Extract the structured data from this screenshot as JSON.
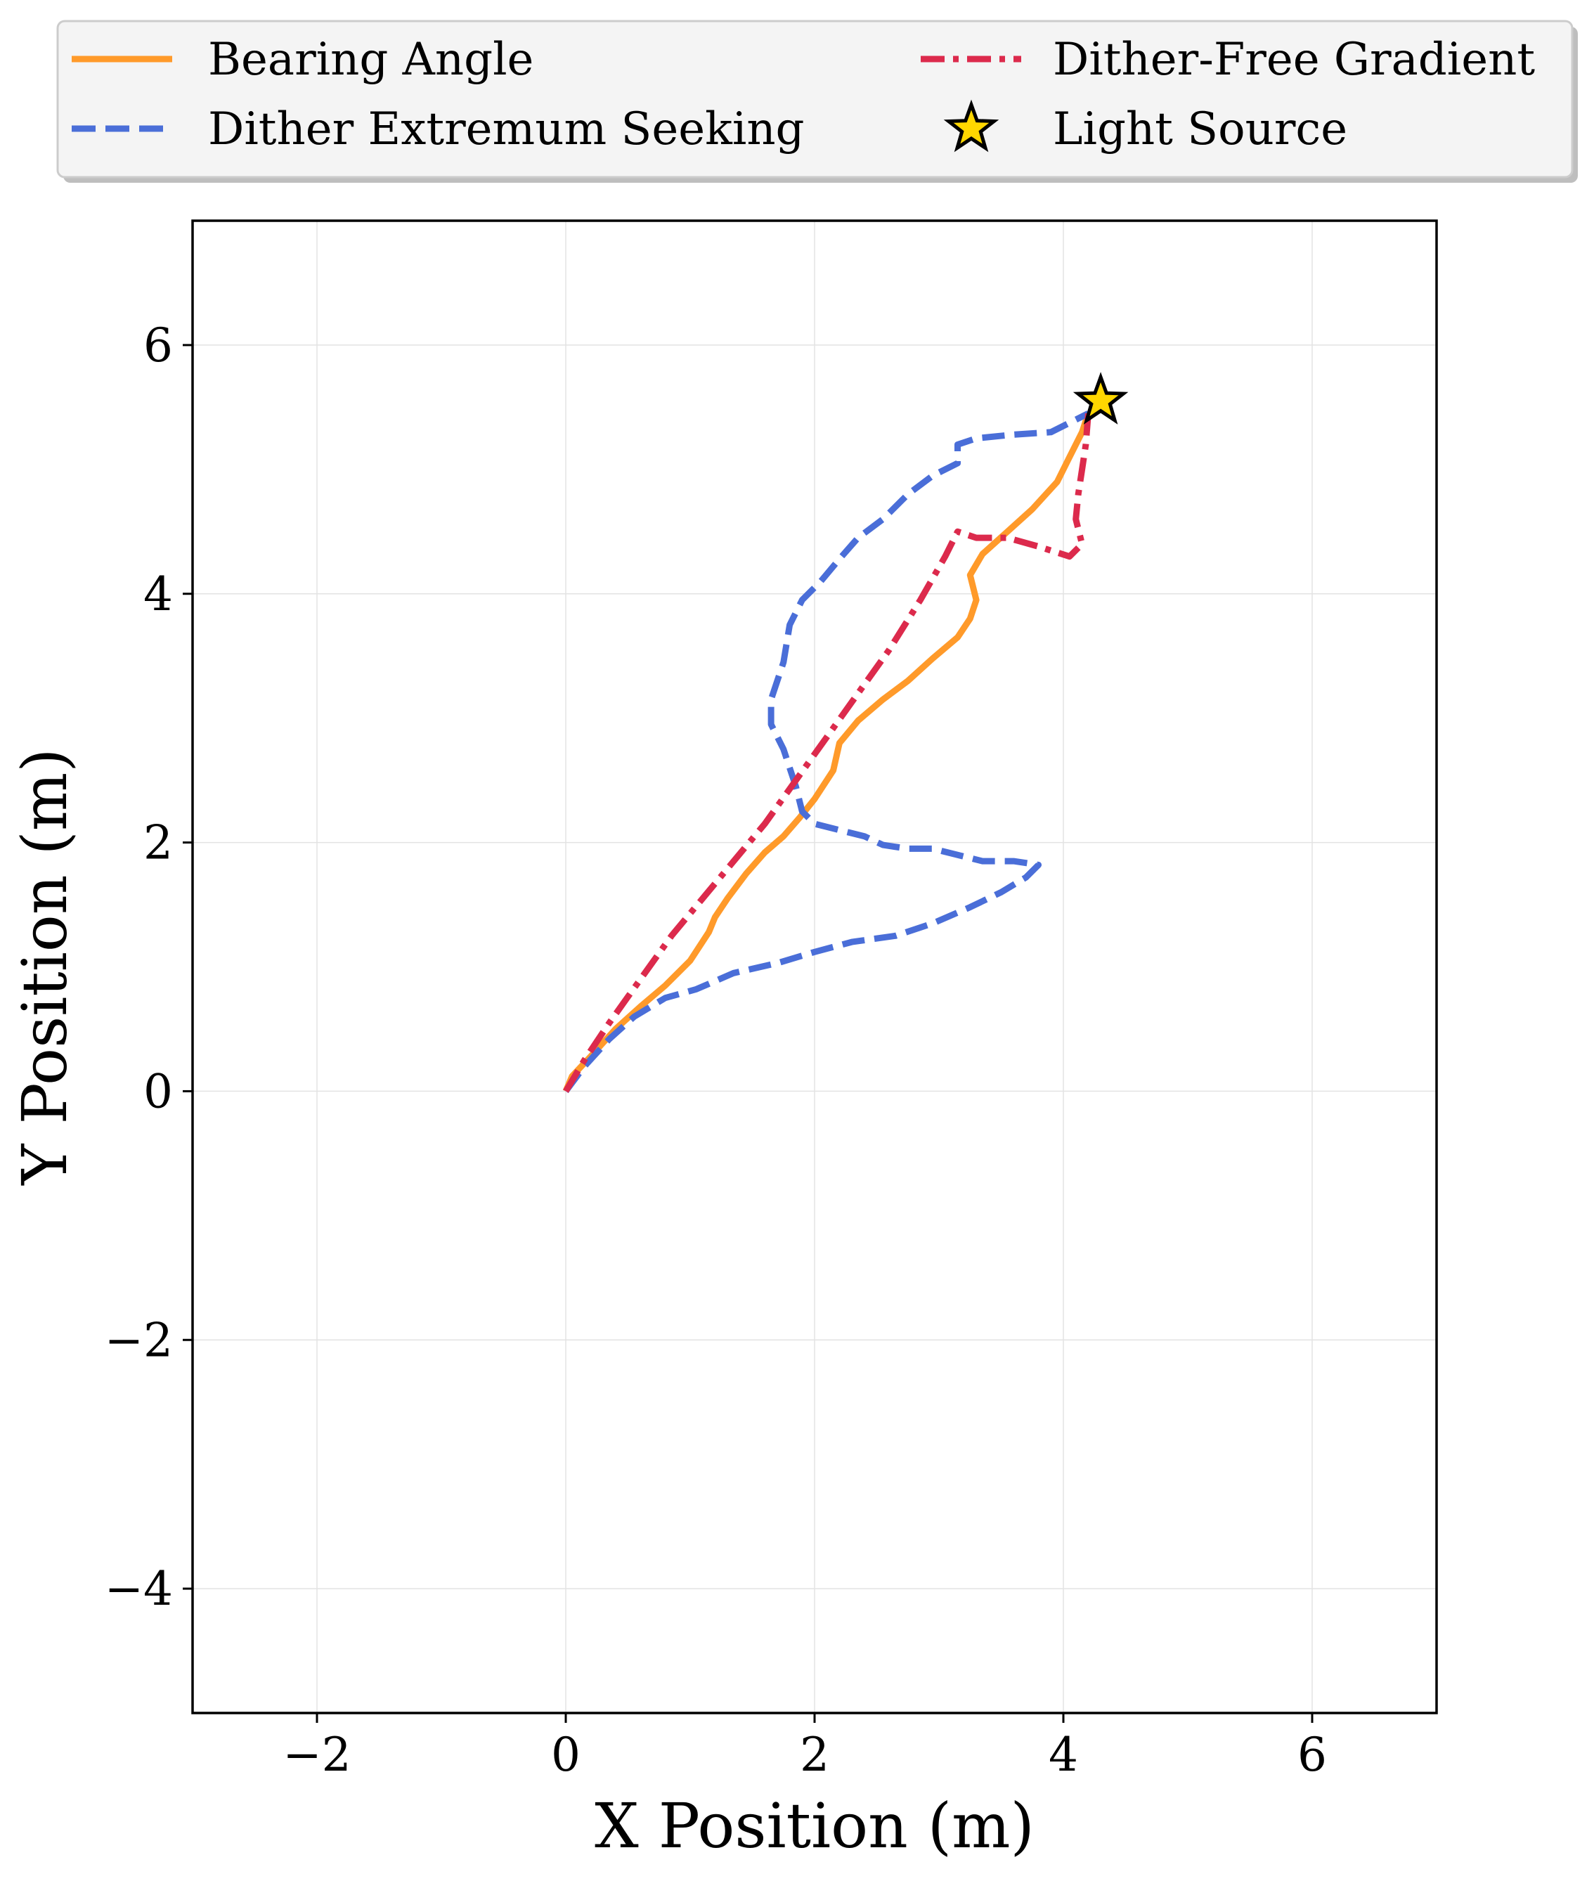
{
  "chart_data": {
    "type": "line",
    "xlabel": "X Position (m)",
    "ylabel": "Y Position (m)",
    "xlim": [
      -3,
      7
    ],
    "ylim": [
      -5,
      7
    ],
    "xticks": [
      -2,
      0,
      2,
      4,
      6
    ],
    "yticks": [
      -4,
      -2,
      0,
      2,
      4,
      6
    ],
    "xtick_labels": [
      "−2",
      "0",
      "2",
      "4",
      "6"
    ],
    "ytick_labels": [
      "−4",
      "−2",
      "0",
      "2",
      "4",
      "6"
    ],
    "grid": true,
    "legend_position": "top (above plot), two columns",
    "series": [
      {
        "name": "Bearing Angle",
        "color": "#ff9a2a",
        "style": "solid",
        "points": [
          [
            0,
            0
          ],
          [
            0.05,
            0.12
          ],
          [
            0.2,
            0.28
          ],
          [
            0.4,
            0.5
          ],
          [
            0.6,
            0.68
          ],
          [
            0.8,
            0.85
          ],
          [
            1.0,
            1.05
          ],
          [
            1.15,
            1.28
          ],
          [
            1.2,
            1.4
          ],
          [
            1.3,
            1.55
          ],
          [
            1.45,
            1.75
          ],
          [
            1.6,
            1.92
          ],
          [
            1.75,
            2.05
          ],
          [
            1.88,
            2.2
          ],
          [
            2.0,
            2.35
          ],
          [
            2.15,
            2.58
          ],
          [
            2.2,
            2.8
          ],
          [
            2.35,
            2.98
          ],
          [
            2.55,
            3.15
          ],
          [
            2.75,
            3.3
          ],
          [
            2.95,
            3.48
          ],
          [
            3.15,
            3.65
          ],
          [
            3.25,
            3.8
          ],
          [
            3.3,
            3.95
          ],
          [
            3.25,
            4.15
          ],
          [
            3.35,
            4.32
          ],
          [
            3.55,
            4.5
          ],
          [
            3.75,
            4.68
          ],
          [
            3.95,
            4.9
          ],
          [
            4.05,
            5.1
          ],
          [
            4.15,
            5.3
          ],
          [
            4.2,
            5.45
          ]
        ]
      },
      {
        "name": "Dither Extremum Seeking",
        "color": "#4a6ed8",
        "style": "dashed",
        "points": [
          [
            0,
            0
          ],
          [
            0.15,
            0.2
          ],
          [
            0.35,
            0.42
          ],
          [
            0.55,
            0.6
          ],
          [
            0.8,
            0.75
          ],
          [
            1.05,
            0.82
          ],
          [
            1.35,
            0.95
          ],
          [
            1.7,
            1.03
          ],
          [
            2.0,
            1.12
          ],
          [
            2.3,
            1.2
          ],
          [
            2.65,
            1.25
          ],
          [
            2.95,
            1.35
          ],
          [
            3.25,
            1.48
          ],
          [
            3.5,
            1.6
          ],
          [
            3.7,
            1.72
          ],
          [
            3.8,
            1.82
          ],
          [
            3.6,
            1.85
          ],
          [
            3.35,
            1.85
          ],
          [
            3.15,
            1.9
          ],
          [
            2.95,
            1.95
          ],
          [
            2.75,
            1.95
          ],
          [
            2.55,
            1.98
          ],
          [
            2.4,
            2.05
          ],
          [
            2.2,
            2.1
          ],
          [
            2.0,
            2.15
          ],
          [
            1.9,
            2.25
          ],
          [
            1.85,
            2.45
          ],
          [
            1.75,
            2.75
          ],
          [
            1.65,
            2.95
          ],
          [
            1.65,
            3.15
          ],
          [
            1.75,
            3.45
          ],
          [
            1.8,
            3.75
          ],
          [
            1.9,
            3.95
          ],
          [
            2.05,
            4.1
          ],
          [
            2.2,
            4.28
          ],
          [
            2.35,
            4.45
          ],
          [
            2.55,
            4.6
          ],
          [
            2.75,
            4.8
          ],
          [
            2.95,
            4.95
          ],
          [
            3.15,
            5.05
          ],
          [
            3.15,
            5.2
          ],
          [
            3.3,
            5.25
          ],
          [
            3.6,
            5.28
          ],
          [
            3.9,
            5.3
          ],
          [
            4.2,
            5.45
          ]
        ]
      },
      {
        "name": "Dither-Free Gradient",
        "color": "#dc2a4c",
        "style": "dashdot",
        "points": [
          [
            0,
            0
          ],
          [
            0.15,
            0.25
          ],
          [
            0.35,
            0.55
          ],
          [
            0.6,
            0.9
          ],
          [
            0.85,
            1.25
          ],
          [
            1.1,
            1.55
          ],
          [
            1.35,
            1.85
          ],
          [
            1.6,
            2.15
          ],
          [
            1.85,
            2.5
          ],
          [
            2.1,
            2.85
          ],
          [
            2.35,
            3.2
          ],
          [
            2.6,
            3.55
          ],
          [
            2.85,
            3.95
          ],
          [
            3.05,
            4.3
          ],
          [
            3.15,
            4.5
          ],
          [
            3.3,
            4.45
          ],
          [
            3.55,
            4.45
          ],
          [
            3.8,
            4.38
          ],
          [
            4.05,
            4.3
          ],
          [
            4.15,
            4.4
          ],
          [
            4.1,
            4.6
          ],
          [
            4.12,
            4.8
          ],
          [
            4.15,
            5.0
          ],
          [
            4.18,
            5.2
          ],
          [
            4.2,
            5.45
          ]
        ]
      }
    ],
    "light_source": {
      "name": "Light Source",
      "x": 4.3,
      "y": 5.55,
      "color": "#ffd700"
    }
  }
}
